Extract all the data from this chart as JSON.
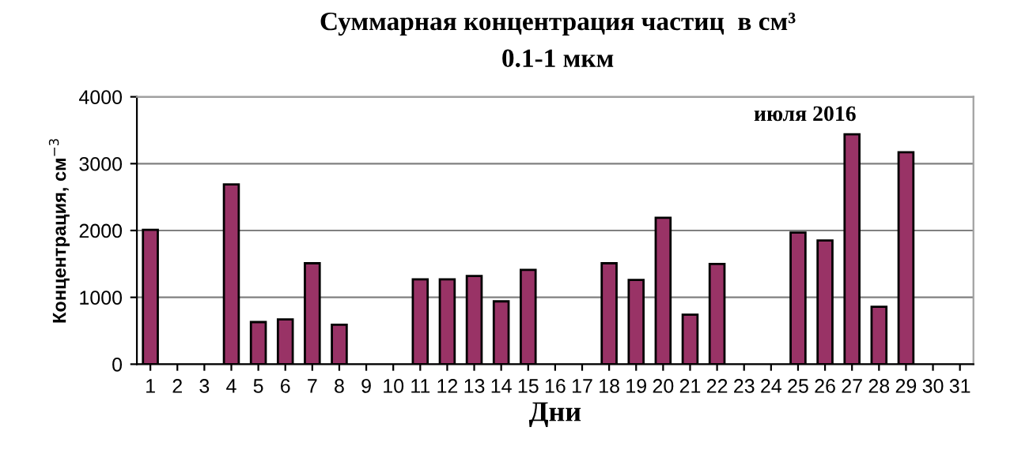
{
  "chart_data": {
    "type": "bar",
    "title": "Суммарная концентрация частиц  в см³",
    "subtitle": "0.1-1 мкм",
    "xlabel": "Дни",
    "ylabel": "Концентрация, см$^{−3}$",
    "annotations": [
      "июля 2016"
    ],
    "categories": [
      "1",
      "2",
      "3",
      "4",
      "5",
      "6",
      "7",
      "8",
      "9",
      "10",
      "11",
      "12",
      "13",
      "14",
      "15",
      "16",
      "17",
      "18",
      "19",
      "20",
      "21",
      "22",
      "23",
      "24",
      "25",
      "26",
      "27",
      "28",
      "29",
      "30",
      "31"
    ],
    "values": [
      2010,
      null,
      null,
      2690,
      630,
      670,
      1510,
      590,
      null,
      null,
      1270,
      1270,
      1320,
      940,
      1410,
      null,
      null,
      1510,
      1260,
      2190,
      740,
      1500,
      null,
      null,
      1970,
      1850,
      3440,
      860,
      3170,
      null,
      null
    ],
    "color": "#993366",
    "ylim": [
      0,
      4000
    ],
    "yticks": [
      0,
      1000,
      2000,
      3000,
      4000
    ],
    "grid": "y",
    "legend": false
  }
}
